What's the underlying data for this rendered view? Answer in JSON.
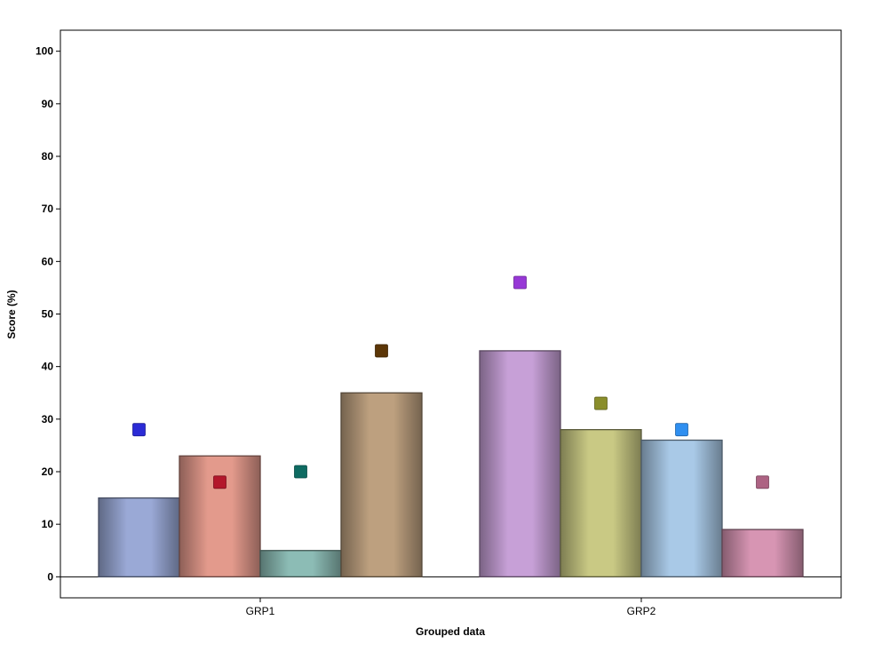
{
  "chart_data": {
    "type": "bar",
    "xlabel": "Grouped data",
    "ylabel": "Score (%)",
    "ylim": [
      -4,
      104
    ],
    "yticks": [
      0,
      10,
      20,
      30,
      40,
      50,
      60,
      70,
      80,
      90,
      100
    ],
    "grid": false,
    "legend": "none",
    "categories": [
      "GRP1",
      "GRP2"
    ],
    "groups": [
      {
        "category": "GRP1",
        "bars": [
          {
            "value": 15,
            "marker": 28,
            "bar_color": "#9aa9d6",
            "marker_color": "#2b2bd6"
          },
          {
            "value": 23,
            "marker": 18,
            "bar_color": "#e39a8c",
            "marker_color": "#b3172b"
          },
          {
            "value": 5,
            "marker": 20,
            "bar_color": "#8cbcb5",
            "marker_color": "#0e6b62"
          },
          {
            "value": 35,
            "marker": 43,
            "bar_color": "#bda07f",
            "marker_color": "#5c3607"
          }
        ]
      },
      {
        "category": "GRP2",
        "bars": [
          {
            "value": 43,
            "marker": 56,
            "bar_color": "#c7a0d7",
            "marker_color": "#9738d6"
          },
          {
            "value": 28,
            "marker": 33,
            "bar_color": "#c9c984",
            "marker_color": "#8a8e2b"
          },
          {
            "value": 26,
            "marker": 28,
            "bar_color": "#a9c9e7",
            "marker_color": "#2f8ff0"
          },
          {
            "value": 9,
            "marker": 18,
            "bar_color": "#d795b3",
            "marker_color": "#ad6383"
          }
        ]
      }
    ]
  }
}
